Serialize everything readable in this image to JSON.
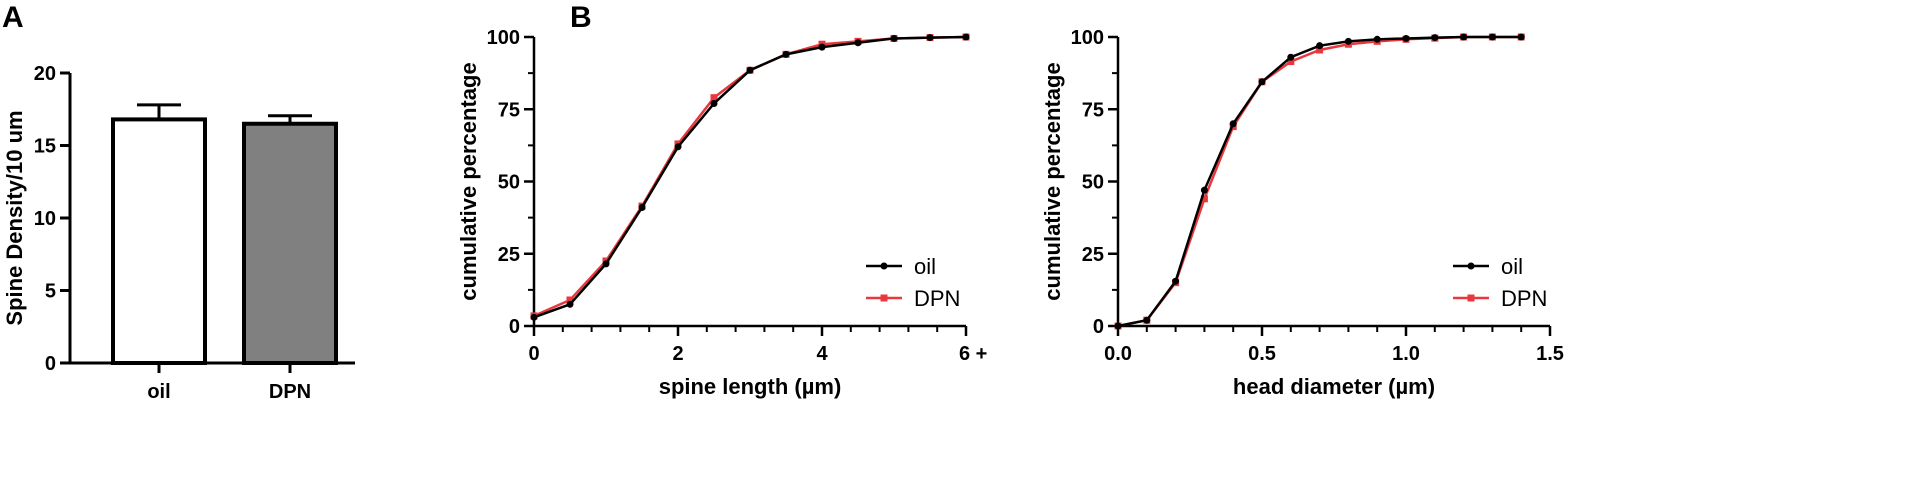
{
  "panels": {
    "a": {
      "letter": "A"
    },
    "b": {
      "letter": "B"
    }
  },
  "chart_data": [
    {
      "type": "bar",
      "title": "",
      "xlabel": "",
      "ylabel": "Spine Density/10 um",
      "ylim": [
        0,
        20
      ],
      "yticks": [
        "0",
        "5",
        "10",
        "15",
        "20"
      ],
      "categories": [
        "oil",
        "DPN"
      ],
      "values": [
        16.8,
        16.5
      ],
      "errors": [
        1.0,
        0.55
      ],
      "colors": [
        "#ffffff",
        "#808080"
      ],
      "grid": false
    },
    {
      "type": "line",
      "title": "",
      "xlabel": "spine length (µm)",
      "ylabel": "cumulative percentage",
      "xlim": [
        0,
        6
      ],
      "ylim": [
        0,
        100
      ],
      "xticks": [
        "0",
        "2",
        "4",
        "6 +"
      ],
      "yticks": [
        "0",
        "25",
        "50",
        "75",
        "100"
      ],
      "grid": false,
      "legend": "bottom-right",
      "series": [
        {
          "name": "oil",
          "color": "#000000",
          "marker": "circle",
          "x": [
            0,
            0.5,
            1,
            1.5,
            2,
            2.5,
            3,
            3.5,
            4,
            4.5,
            5,
            5.5,
            6
          ],
          "y": [
            3,
            7.5,
            21.5,
            41,
            62,
            77,
            88.5,
            94,
            96.5,
            98,
            99.5,
            99.8,
            100
          ]
        },
        {
          "name": "DPN",
          "color": "#e8383d",
          "marker": "square",
          "x": [
            0,
            0.5,
            1,
            1.5,
            2,
            2.5,
            3,
            3.5,
            4,
            4.5,
            5,
            5.5,
            6
          ],
          "y": [
            3.5,
            9,
            22.5,
            41.5,
            63,
            79,
            88.5,
            94,
            97.5,
            98.5,
            99.5,
            99.8,
            100
          ]
        }
      ]
    },
    {
      "type": "line",
      "title": "",
      "xlabel": "head diameter (µm)",
      "ylabel": "cumulative percentage",
      "xlim": [
        0,
        1.5
      ],
      "ylim": [
        0,
        100
      ],
      "xticks": [
        "0.0",
        "0.5",
        "1.0",
        "1.5"
      ],
      "yticks": [
        "0",
        "25",
        "50",
        "75",
        "100"
      ],
      "grid": false,
      "legend": "bottom-right",
      "series": [
        {
          "name": "oil",
          "color": "#000000",
          "marker": "circle",
          "x": [
            0,
            0.1,
            0.2,
            0.3,
            0.4,
            0.5,
            0.6,
            0.7,
            0.8,
            0.9,
            1.0,
            1.1,
            1.2,
            1.3,
            1.4
          ],
          "y": [
            0,
            2,
            15.5,
            47,
            70,
            84.5,
            93,
            97,
            98.5,
            99.2,
            99.5,
            99.8,
            100,
            100,
            100
          ]
        },
        {
          "name": "DPN",
          "color": "#e8383d",
          "marker": "square",
          "x": [
            0,
            0.1,
            0.2,
            0.3,
            0.4,
            0.5,
            0.6,
            0.7,
            0.8,
            0.9,
            1.0,
            1.1,
            1.2,
            1.3,
            1.4
          ],
          "y": [
            0,
            2,
            15,
            44,
            69,
            84.5,
            91.5,
            95.5,
            97.5,
            98.5,
            99.2,
            99.6,
            100,
            100,
            100
          ]
        }
      ]
    }
  ]
}
